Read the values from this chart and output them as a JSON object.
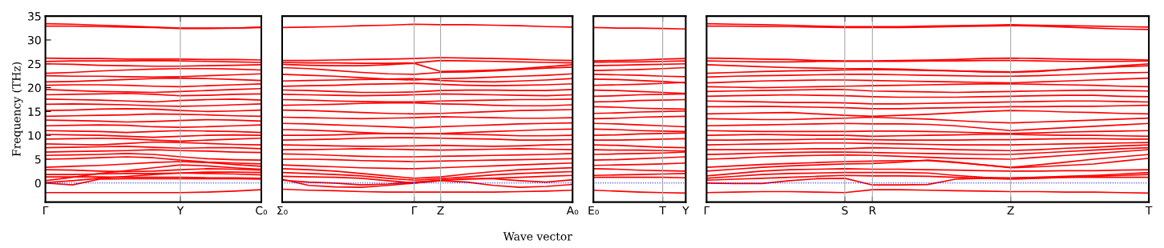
{
  "chart_data": [
    {
      "type": "line",
      "ylabel": "Frequency (THz)",
      "color": "#ff0000",
      "line_style": "solid",
      "categories": [
        "Γ",
        null,
        null,
        null,
        null,
        "Y",
        null,
        null,
        "C₀"
      ],
      "ylim": [
        -4,
        35
      ],
      "yticks": [
        0,
        5,
        10,
        15,
        20,
        25,
        30,
        35
      ],
      "ref_lines": [
        {
          "axis": "y",
          "value": 0,
          "color": "#0000ff",
          "line_style": "dotted"
        },
        {
          "axis": "x",
          "value": "Y",
          "color": "#aaaaaa",
          "line_style": "solid"
        }
      ],
      "series": [
        {
          "values": [
            33.4,
            33.3,
            33.1,
            32.9,
            32.7,
            32.5,
            32.5,
            32.5,
            32.6
          ]
        },
        {
          "values": [
            32.9,
            32.9,
            32.8,
            32.7,
            32.6,
            32.4,
            32.4,
            32.5,
            32.7
          ]
        },
        {
          "values": [
            26.2,
            26.1,
            26.1,
            26.0,
            26.0,
            26.0,
            25.9,
            25.9,
            25.8
          ]
        },
        {
          "values": [
            25.5,
            25.6,
            25.6,
            25.6,
            25.7,
            25.6,
            25.5,
            25.4,
            25.3
          ]
        },
        {
          "values": [
            25.0,
            24.9,
            24.7,
            24.6,
            24.5,
            24.5,
            24.6,
            24.7,
            24.8
          ]
        },
        {
          "values": [
            23.0,
            23.2,
            23.5,
            23.7,
            23.9,
            24.0,
            24.0,
            23.9,
            23.7
          ]
        },
        {
          "values": [
            22.5,
            22.4,
            22.4,
            22.3,
            22.2,
            22.3,
            22.5,
            22.7,
            22.9
          ]
        },
        {
          "values": [
            21.2,
            21.3,
            21.5,
            21.7,
            21.9,
            22.0,
            21.9,
            21.7,
            21.5
          ]
        },
        {
          "values": [
            20.5,
            20.6,
            20.6,
            20.5,
            20.3,
            20.2,
            20.4,
            20.6,
            20.8
          ]
        },
        {
          "values": [
            19.6,
            19.4,
            19.2,
            19.1,
            19.0,
            19.2,
            19.4,
            19.6,
            19.8
          ]
        },
        {
          "values": [
            18.5,
            18.6,
            18.7,
            18.8,
            18.6,
            18.3,
            18.4,
            18.6,
            18.7
          ]
        },
        {
          "values": [
            17.6,
            17.5,
            17.4,
            17.2,
            17.0,
            17.3,
            17.5,
            17.6,
            17.4
          ]
        },
        {
          "values": [
            16.5,
            16.6,
            16.5,
            16.4,
            16.2,
            16.1,
            16.2,
            16.4,
            16.6
          ]
        },
        {
          "values": [
            15.2,
            15.3,
            15.5,
            15.6,
            15.5,
            15.2,
            15.0,
            15.1,
            15.3
          ]
        },
        {
          "values": [
            14.0,
            14.1,
            14.2,
            14.3,
            14.5,
            14.4,
            14.3,
            14.1,
            14.0
          ]
        },
        {
          "values": [
            13.2,
            13.1,
            13.0,
            12.8,
            12.9,
            13.1,
            13.3,
            13.2,
            13.0
          ]
        },
        {
          "values": [
            12.0,
            12.1,
            12.2,
            12.1,
            11.8,
            11.7,
            11.8,
            12.0,
            12.2
          ]
        },
        {
          "values": [
            11.0,
            10.9,
            10.8,
            10.6,
            10.8,
            11.0,
            10.9,
            10.8,
            10.6
          ]
        },
        {
          "values": [
            10.2,
            10.1,
            10.0,
            9.8,
            9.6,
            9.8,
            10.0,
            10.1,
            10.0
          ]
        },
        {
          "values": [
            9.2,
            9.3,
            9.4,
            9.3,
            9.0,
            8.8,
            9.0,
            9.2,
            9.4
          ]
        },
        {
          "values": [
            8.2,
            8.1,
            8.0,
            8.3,
            8.6,
            8.5,
            8.3,
            8.1,
            8.0
          ]
        },
        {
          "values": [
            7.4,
            7.5,
            7.6,
            7.7,
            7.5,
            7.3,
            7.4,
            7.4,
            7.2
          ]
        },
        {
          "values": [
            6.5,
            6.6,
            6.7,
            6.8,
            7.0,
            6.8,
            6.7,
            6.5,
            6.4
          ]
        },
        {
          "values": [
            5.8,
            5.9,
            6.0,
            6.2,
            6.0,
            5.5,
            5.1,
            4.9,
            4.8
          ]
        },
        {
          "values": [
            5.0,
            5.1,
            5.3,
            5.5,
            5.3,
            4.8,
            4.4,
            4.2,
            4.0
          ]
        },
        {
          "values": [
            3.3,
            3.5,
            3.7,
            4.0,
            4.3,
            4.5,
            4.3,
            3.9,
            3.5
          ]
        },
        {
          "values": [
            2.8,
            2.7,
            2.5,
            2.4,
            2.5,
            2.8,
            3.0,
            2.9,
            2.7
          ]
        },
        {
          "values": [
            0.5,
            1.2,
            2.0,
            2.6,
            3.2,
            3.8,
            3.6,
            3.2,
            2.9
          ]
        },
        {
          "values": [
            1.8,
            1.8,
            1.9,
            2.0,
            2.0,
            2.1,
            2.0,
            1.9,
            1.7
          ]
        },
        {
          "values": [
            0.1,
            0.5,
            1.0,
            1.4,
            1.8,
            2.1,
            2.3,
            2.3,
            2.2
          ]
        },
        {
          "values": [
            1.3,
            1.3,
            1.3,
            1.2,
            1.2,
            1.2,
            1.1,
            1.1,
            1.0
          ]
        },
        {
          "values": [
            0,
            -0.4,
            0.8,
            0.9,
            0.9,
            0.9,
            0.9,
            0.9,
            0.8
          ]
        },
        {
          "values": [
            -2.0,
            -2.0,
            -2.0,
            -2.0,
            -2.0,
            -2.0,
            -1.9,
            -1.7,
            -1.4
          ]
        }
      ]
    },
    {
      "type": "line",
      "color": "#ff0000",
      "line_style": "solid",
      "tick_labels": "x",
      "xlabel": "Wave vector",
      "categories": [
        "Σ₀",
        null,
        null,
        null,
        null,
        "Γ",
        "Z",
        null,
        null,
        null,
        null,
        "A₀"
      ],
      "ylim": [
        -4,
        35
      ],
      "yticks": [
        0,
        5,
        10,
        15,
        20,
        25,
        30,
        35
      ],
      "ref_lines": [
        {
          "axis": "y",
          "value": 0,
          "color": "#0000ff",
          "line_style": "dotted"
        },
        {
          "axis": "x",
          "value": "Γ",
          "color": "#aaaaaa",
          "line_style": "solid"
        },
        {
          "axis": "x",
          "value": "Z",
          "color": "#aaaaaa",
          "line_style": "solid"
        }
      ],
      "series": [
        {
          "values": [
            32.6,
            32.7,
            32.8,
            33.0,
            33.1,
            33.3,
            33.2,
            33.2,
            33.1,
            33.0,
            32.8,
            32.7
          ]
        },
        {
          "values": [
            25.7,
            25.7,
            25.8,
            25.9,
            26.0,
            26.1,
            26.3,
            26.2,
            26.1,
            26.0,
            25.8,
            25.7
          ]
        },
        {
          "values": [
            25.3,
            25.2,
            25.2,
            25.1,
            25.1,
            25.2,
            25.7,
            25.6,
            25.5,
            25.4,
            25.3,
            25.2
          ]
        },
        {
          "values": [
            24.9,
            24.7,
            24.6,
            24.6,
            24.8,
            25.1,
            23.4,
            23.5,
            23.7,
            24.0,
            24.4,
            24.8
          ]
        },
        {
          "values": [
            24.2,
            24.0,
            23.6,
            23.2,
            22.9,
            22.8,
            23.2,
            23.3,
            23.5,
            23.8,
            24.1,
            24.3
          ]
        },
        {
          "values": [
            22.8,
            22.6,
            22.4,
            22.1,
            21.8,
            21.6,
            21.9,
            22.0,
            22.2,
            22.4,
            22.6,
            22.9
          ]
        },
        {
          "values": [
            21.4,
            21.5,
            21.6,
            21.7,
            21.8,
            21.9,
            21.5,
            21.3,
            21.2,
            21.4,
            21.6,
            21.9
          ]
        },
        {
          "values": [
            20.3,
            20.4,
            20.5,
            20.7,
            20.8,
            20.9,
            20.7,
            20.5,
            20.4,
            20.5,
            20.6,
            20.8
          ]
        },
        {
          "values": [
            19.5,
            19.4,
            19.2,
            19.0,
            19.0,
            19.1,
            19.4,
            19.5,
            19.5,
            19.4,
            19.4,
            19.6
          ]
        },
        {
          "values": [
            18.6,
            18.5,
            18.4,
            18.3,
            18.4,
            18.5,
            18.7,
            18.6,
            18.5,
            18.4,
            18.3,
            18.5
          ]
        },
        {
          "values": [
            17.5,
            17.4,
            17.2,
            17.1,
            17.0,
            17.0,
            17.2,
            17.3,
            17.4,
            17.5,
            17.5,
            17.6
          ]
        },
        {
          "values": [
            16.3,
            16.4,
            16.5,
            16.7,
            16.8,
            16.8,
            16.6,
            16.5,
            16.3,
            16.2,
            16.2,
            16.4
          ]
        },
        {
          "values": [
            15.3,
            15.2,
            15.0,
            14.8,
            14.6,
            14.5,
            14.6,
            14.8,
            15.0,
            15.2,
            15.3,
            15.4
          ]
        },
        {
          "values": [
            13.8,
            13.7,
            13.6,
            13.5,
            13.6,
            13.7,
            13.9,
            13.8,
            13.7,
            13.6,
            13.6,
            13.7
          ]
        },
        {
          "values": [
            12.5,
            12.4,
            12.2,
            12.0,
            11.8,
            11.6,
            11.8,
            12.0,
            12.2,
            12.4,
            12.5,
            12.6
          ]
        },
        {
          "values": [
            11.2,
            11.1,
            10.9,
            10.6,
            10.4,
            10.3,
            10.4,
            10.6,
            10.8,
            11.0,
            11.2,
            11.3
          ]
        },
        {
          "values": [
            10.0,
            10.0,
            10.1,
            10.3,
            10.4,
            10.4,
            10.3,
            10.2,
            10.1,
            9.9,
            9.9,
            10.0
          ]
        },
        {
          "values": [
            9.0,
            9.1,
            9.2,
            9.4,
            9.5,
            9.5,
            9.4,
            9.3,
            9.2,
            9.0,
            9.0,
            9.1
          ]
        },
        {
          "values": [
            8.0,
            7.9,
            7.8,
            7.7,
            7.7,
            7.8,
            7.9,
            7.8,
            7.7,
            7.8,
            8.0,
            8.1
          ]
        },
        {
          "values": [
            7.0,
            7.0,
            7.1,
            7.2,
            7.1,
            7.0,
            6.9,
            7.0,
            7.1,
            7.2,
            7.1,
            7.0
          ]
        },
        {
          "values": [
            6.1,
            6.0,
            5.8,
            5.6,
            5.5,
            5.5,
            5.6,
            5.7,
            5.8,
            5.9,
            6.0,
            6.2
          ]
        },
        {
          "values": [
            5.0,
            5.0,
            4.9,
            4.7,
            4.6,
            4.5,
            4.6,
            4.7,
            4.8,
            4.9,
            5.0,
            5.1
          ]
        },
        {
          "values": [
            3.8,
            3.6,
            3.4,
            3.2,
            3.1,
            3.0,
            3.2,
            3.4,
            3.6,
            3.8,
            4.0,
            4.2
          ]
        },
        {
          "values": [
            3.0,
            2.8,
            2.5,
            2.0,
            1.5,
            1.0,
            1.3,
            1.9,
            2.4,
            2.8,
            3.0,
            3.2
          ]
        },
        {
          "values": [
            2.2,
            2.0,
            1.8,
            1.5,
            1.0,
            0.6,
            0.9,
            1.3,
            1.7,
            2.0,
            2.2,
            2.4
          ]
        },
        {
          "values": [
            1.4,
            1.3,
            1.2,
            1.0,
            0.5,
            0.0,
            0.6,
            0.8,
            1.0,
            1.2,
            1.4,
            1.6
          ]
        },
        {
          "values": [
            0.6,
            0.2,
            0.0,
            -0.4,
            -0.2,
            0.2,
            0.6,
            0.9,
            0.9,
            0.5,
            0.2,
            0.7
          ]
        },
        {
          "values": [
            0.8,
            -0.5,
            -0.8,
            -0.9,
            -0.5,
            0.0,
            0.5,
            0.2,
            -0.5,
            -0.9,
            -0.7,
            -0.3
          ]
        },
        {
          "values": [
            -1.3,
            -1.5,
            -1.6,
            -1.8,
            -1.9,
            -1.9,
            -1.9,
            -1.9,
            -1.9,
            -1.8,
            -1.7,
            -1.5
          ]
        }
      ]
    },
    {
      "type": "line",
      "color": "#ff0000",
      "line_style": "solid",
      "tick_labels": "x",
      "categories": [
        "E₀",
        null,
        null,
        "T",
        "Y"
      ],
      "ylim": [
        -4,
        35
      ],
      "yticks": [
        0,
        5,
        10,
        15,
        20,
        25,
        30,
        35
      ],
      "ref_lines": [
        {
          "axis": "y",
          "value": 0,
          "color": "#0000ff",
          "line_style": "dotted"
        },
        {
          "axis": "x",
          "value": "T",
          "color": "#aaaaaa",
          "line_style": "solid"
        }
      ],
      "series": [
        {
          "values": [
            32.6,
            32.5,
            32.5,
            32.4,
            32.3
          ]
        },
        {
          "values": [
            25.6,
            25.7,
            25.8,
            26.0,
            26.1
          ]
        },
        {
          "values": [
            25.3,
            25.4,
            25.4,
            25.5,
            25.6
          ]
        },
        {
          "values": [
            24.6,
            24.7,
            24.8,
            24.9,
            25.0
          ]
        },
        {
          "values": [
            23.6,
            23.7,
            23.8,
            24.0,
            24.2
          ]
        },
        {
          "values": [
            22.8,
            22.7,
            22.6,
            22.4,
            22.3
          ]
        },
        {
          "values": [
            21.8,
            21.7,
            21.5,
            21.3,
            21.0
          ]
        },
        {
          "values": [
            20.5,
            20.6,
            20.7,
            20.9,
            21.1
          ]
        },
        {
          "values": [
            19.5,
            19.4,
            19.2,
            19.0,
            18.8
          ]
        },
        {
          "values": [
            18.2,
            18.3,
            18.5,
            18.6,
            18.7
          ]
        },
        {
          "values": [
            17.0,
            17.1,
            17.3,
            17.4,
            17.5
          ]
        },
        {
          "values": [
            16.0,
            15.9,
            15.7,
            15.6,
            15.5
          ]
        },
        {
          "values": [
            14.6,
            14.7,
            14.9,
            15.0,
            15.1
          ]
        },
        {
          "values": [
            13.5,
            13.6,
            13.8,
            13.9,
            14.0
          ]
        },
        {
          "values": [
            12.5,
            12.4,
            12.2,
            12.0,
            11.8
          ]
        },
        {
          "values": [
            11.3,
            11.2,
            11.0,
            10.9,
            10.8
          ]
        },
        {
          "values": [
            10.0,
            10.1,
            10.3,
            10.4,
            10.5
          ]
        },
        {
          "values": [
            9.0,
            9.0,
            9.1,
            9.2,
            9.3
          ]
        },
        {
          "values": [
            8.0,
            7.9,
            7.7,
            7.5,
            7.4
          ]
        },
        {
          "values": [
            7.0,
            6.9,
            6.9,
            6.8,
            6.7
          ]
        },
        {
          "values": [
            6.0,
            6.1,
            6.2,
            6.3,
            6.5
          ]
        },
        {
          "values": [
            4.8,
            4.9,
            5.1,
            5.3,
            5.5
          ]
        },
        {
          "values": [
            3.7,
            3.8,
            3.9,
            4.0,
            4.2
          ]
        },
        {
          "values": [
            3.0,
            2.9,
            2.7,
            2.6,
            2.5
          ]
        },
        {
          "values": [
            1.6,
            1.7,
            1.8,
            1.9,
            2.0
          ]
        },
        {
          "values": [
            1.2,
            1.2,
            1.2,
            1.2,
            1.1
          ]
        },
        {
          "values": [
            -1.5,
            -1.7,
            -1.9,
            -2.0,
            -2.1
          ]
        }
      ]
    },
    {
      "type": "line",
      "color": "#ff0000",
      "line_style": "solid",
      "tick_labels": "x",
      "categories": [
        "Γ",
        null,
        null,
        null,
        null,
        "S",
        "R",
        null,
        null,
        null,
        null,
        "Z",
        null,
        null,
        null,
        null,
        "T"
      ],
      "ylim": [
        -4,
        35
      ],
      "yticks": [
        0,
        5,
        10,
        15,
        20,
        25,
        30,
        35
      ],
      "ref_lines": [
        {
          "axis": "y",
          "value": 0,
          "color": "#0000ff",
          "line_style": "dotted"
        },
        {
          "axis": "x",
          "value": "S",
          "color": "#aaaaaa",
          "line_style": "solid"
        },
        {
          "axis": "x",
          "value": "R",
          "color": "#aaaaaa",
          "line_style": "solid"
        },
        {
          "axis": "x",
          "value": "Z",
          "color": "#aaaaaa",
          "line_style": "solid"
        }
      ],
      "series": [
        {
          "values": [
            33.4,
            33.3,
            33.2,
            33.1,
            32.9,
            32.8,
            32.8,
            32.8,
            32.9,
            33.0,
            33.1,
            33.2,
            33.1,
            33.0,
            32.9,
            32.8,
            32.7
          ]
        },
        {
          "values": [
            32.9,
            32.9,
            32.8,
            32.8,
            32.7,
            32.6,
            32.6,
            32.6,
            32.7,
            32.8,
            32.9,
            33.0,
            32.9,
            32.7,
            32.5,
            32.3,
            32.2
          ]
        },
        {
          "values": [
            26.2,
            26.1,
            26.0,
            25.9,
            25.7,
            25.6,
            25.6,
            25.7,
            25.8,
            25.9,
            26.1,
            26.2,
            26.1,
            26.0,
            25.9,
            25.9,
            25.8
          ]
        },
        {
          "values": [
            25.6,
            25.5,
            25.4,
            25.4,
            25.5,
            25.5,
            25.5,
            25.5,
            25.6,
            25.6,
            25.7,
            25.7,
            25.6,
            25.5,
            25.5,
            25.5,
            25.6
          ]
        },
        {
          "values": [
            24.8,
            24.6,
            24.4,
            24.2,
            24.1,
            24.0,
            24.0,
            23.9,
            23.7,
            23.5,
            23.3,
            23.2,
            23.4,
            23.8,
            24.2,
            24.6,
            25.0
          ]
        },
        {
          "values": [
            23.0,
            23.2,
            23.4,
            23.5,
            23.6,
            23.7,
            23.8,
            23.7,
            23.6,
            23.5,
            23.4,
            23.3,
            23.5,
            23.8,
            24.1,
            24.4,
            24.6
          ]
        },
        {
          "values": [
            22.2,
            22.4,
            22.5,
            22.6,
            22.7,
            22.8,
            22.8,
            22.7,
            22.6,
            22.5,
            22.4,
            22.4,
            22.5,
            22.7,
            22.9,
            23.1,
            23.2
          ]
        },
        {
          "values": [
            21.0,
            21.2,
            21.4,
            21.5,
            21.6,
            21.6,
            21.5,
            21.4,
            21.3,
            21.2,
            21.1,
            21.0,
            21.2,
            21.4,
            21.6,
            21.8,
            22.0
          ]
        },
        {
          "values": [
            20.2,
            20.1,
            20.0,
            20.1,
            20.2,
            20.3,
            20.4,
            20.5,
            20.6,
            20.7,
            20.8,
            20.8,
            20.7,
            20.6,
            20.5,
            20.3,
            20.2
          ]
        },
        {
          "values": [
            19.2,
            19.3,
            19.4,
            19.5,
            19.6,
            19.6,
            19.3,
            19.2,
            19.1,
            19.0,
            19.1,
            19.2,
            19.3,
            19.4,
            19.5,
            19.4,
            19.3
          ]
        },
        {
          "values": [
            18.2,
            18.3,
            18.4,
            18.5,
            18.4,
            18.3,
            18.1,
            18.0,
            18.0,
            18.0,
            18.1,
            18.2,
            18.3,
            18.4,
            18.4,
            18.2,
            18.1
          ]
        },
        {
          "values": [
            17.2,
            17.1,
            17.0,
            16.9,
            16.9,
            16.8,
            16.6,
            16.6,
            16.7,
            16.8,
            16.9,
            17.0,
            17.1,
            17.2,
            17.2,
            17.1,
            17.0
          ]
        },
        {
          "values": [
            16.0,
            16.0,
            16.1,
            16.0,
            15.9,
            15.8,
            15.6,
            15.6,
            15.7,
            15.8,
            15.9,
            16.0,
            16.0,
            16.1,
            16.1,
            16.2,
            16.3
          ]
        },
        {
          "values": [
            14.5,
            14.6,
            14.7,
            14.8,
            14.5,
            14.2,
            14.0,
            14.2,
            14.4,
            14.7,
            15.0,
            15.2,
            15.1,
            14.9,
            14.8,
            14.6,
            14.5
          ]
        },
        {
          "values": [
            13.5,
            13.4,
            13.3,
            13.3,
            13.5,
            13.6,
            13.8,
            13.6,
            13.4,
            13.1,
            12.8,
            12.6,
            12.8,
            13.0,
            13.2,
            13.4,
            13.6
          ]
        },
        {
          "values": [
            12.0,
            12.1,
            12.2,
            12.3,
            12.4,
            12.5,
            12.4,
            12.4,
            12.3,
            12.0,
            11.5,
            11.0,
            11.3,
            11.6,
            11.9,
            12.2,
            12.5
          ]
        },
        {
          "values": [
            11.0,
            10.9,
            10.8,
            10.8,
            10.8,
            10.8,
            10.9,
            10.9,
            10.8,
            10.7,
            10.5,
            10.4,
            10.5,
            10.7,
            10.8,
            10.9,
            11.0
          ]
        },
        {
          "values": [
            10.0,
            10.1,
            10.2,
            10.1,
            10.0,
            10.0,
            9.8,
            9.9,
            10.0,
            10.1,
            10.2,
            10.2,
            10.1,
            10.0,
            10.0,
            9.9,
            9.8
          ]
        },
        {
          "values": [
            9.0,
            9.0,
            9.1,
            9.1,
            9.2,
            9.2,
            9.1,
            9.0,
            9.0,
            9.0,
            9.1,
            9.1,
            9.2,
            9.3,
            9.3,
            9.2,
            9.2
          ]
        },
        {
          "values": [
            8.0,
            8.1,
            8.2,
            8.3,
            8.4,
            8.4,
            8.3,
            8.2,
            8.1,
            8.0,
            8.0,
            8.0,
            8.1,
            8.2,
            8.3,
            8.4,
            8.5
          ]
        },
        {
          "values": [
            7.0,
            7.0,
            7.0,
            7.1,
            7.2,
            7.2,
            7.4,
            7.3,
            7.2,
            7.0,
            6.9,
            6.8,
            7.0,
            7.3,
            7.5,
            7.8,
            8.0
          ]
        },
        {
          "values": [
            6.0,
            6.1,
            6.3,
            6.4,
            6.5,
            6.5,
            6.4,
            6.3,
            6.2,
            6.1,
            6.0,
            6.0,
            6.3,
            6.6,
            6.9,
            7.2,
            7.4
          ]
        },
        {
          "values": [
            5.0,
            5.2,
            5.5,
            5.7,
            5.8,
            5.9,
            5.8,
            5.6,
            5.4,
            5.2,
            5.1,
            5.0,
            5.4,
            5.8,
            6.2,
            6.6,
            7.0
          ]
        },
        {
          "values": [
            3.3,
            3.6,
            3.9,
            4.1,
            4.3,
            4.5,
            4.6,
            4.7,
            4.7,
            4.3,
            3.8,
            3.3,
            3.8,
            4.4,
            5.0,
            5.5,
            6.0
          ]
        },
        {
          "values": [
            2.5,
            2.9,
            3.3,
            3.6,
            3.8,
            4.0,
            4.1,
            4.4,
            4.8,
            4.4,
            3.8,
            3.2,
            3.4,
            3.7,
            4.0,
            4.6,
            5.2
          ]
        },
        {
          "values": [
            1.5,
            2.0,
            2.5,
            2.8,
            2.9,
            3.0,
            2.9,
            2.9,
            2.8,
            2.7,
            2.6,
            2.5,
            2.5,
            2.6,
            2.6,
            2.7,
            2.8
          ]
        },
        {
          "values": [
            1.0,
            1.4,
            1.8,
            2.0,
            2.1,
            2.2,
            2.2,
            2.2,
            2.1,
            1.6,
            1.2,
            1.0,
            1.2,
            1.4,
            1.6,
            1.9,
            2.2
          ]
        },
        {
          "values": [
            0.6,
            0.8,
            1.0,
            1.2,
            1.4,
            1.6,
            1.5,
            1.5,
            1.4,
            1.2,
            1.0,
            0.8,
            1.0,
            1.2,
            1.4,
            1.6,
            1.8
          ]
        },
        {
          "values": [
            0,
            -0.1,
            -0.1,
            0.5,
            0.9,
            1.0,
            -0.4,
            -0.4,
            -0.3,
            0.8,
            1.0,
            1.1,
            1.2,
            1.2,
            1.2,
            1.2,
            1.2
          ]
        },
        {
          "values": [
            -2.0,
            -1.9,
            -1.8,
            -1.8,
            -1.9,
            -2.0,
            -1.4,
            -1.4,
            -1.5,
            -1.6,
            -1.7,
            -1.8,
            -1.8,
            -1.9,
            -1.9,
            -2.0,
            -2.1
          ]
        }
      ]
    }
  ]
}
